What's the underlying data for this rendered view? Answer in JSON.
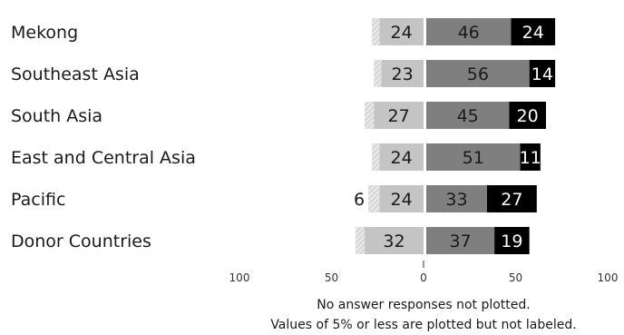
{
  "chart_data": {
    "type": "bar",
    "orientation": "horizontal",
    "diverging": true,
    "categories": [
      "Mekong",
      "Southeast Asia",
      "South Asia",
      "East and Central Asia",
      "Pacific",
      "Donor Countries"
    ],
    "left_series": [
      {
        "values": [
          4,
          4,
          5,
          4,
          6,
          5
        ],
        "labels": [
          "",
          "",
          "",
          "",
          "6",
          ""
        ],
        "color": "#c9c9c9",
        "pattern": "hatched"
      },
      {
        "values": [
          24,
          23,
          27,
          24,
          24,
          32
        ],
        "labels": [
          "24",
          "23",
          "27",
          "24",
          "24",
          "32"
        ],
        "color": "#c4c4c4"
      }
    ],
    "right_series": [
      {
        "values": [
          46,
          56,
          45,
          51,
          33,
          37
        ],
        "labels": [
          "46",
          "56",
          "45",
          "51",
          "33",
          "37"
        ],
        "color": "#7f7f7f"
      },
      {
        "values": [
          24,
          14,
          20,
          11,
          27,
          19
        ],
        "labels": [
          "24",
          "14",
          "20",
          "11",
          "27",
          "19"
        ],
        "color": "#000000"
      }
    ],
    "x_ticks": [
      "100",
      "50",
      "0",
      "50",
      "100"
    ],
    "xlim": [
      -100,
      100
    ],
    "notes": [
      "No answer responses not plotted.",
      "Values of 5% or less are plotted but not labeled."
    ]
  }
}
